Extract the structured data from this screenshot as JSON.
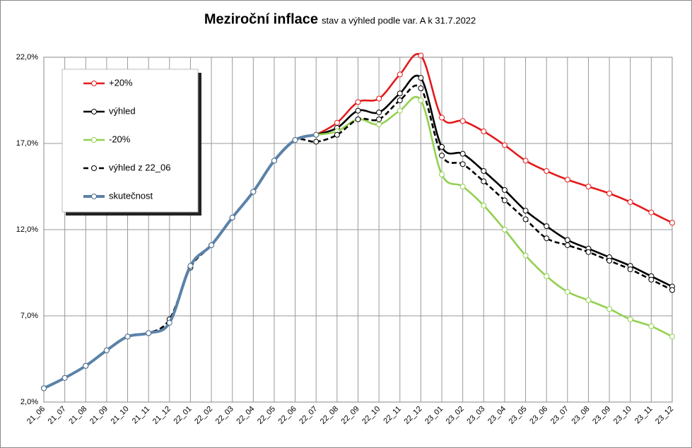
{
  "chart_data": {
    "type": "line",
    "title": "Meziroční inflace",
    "subtitle": "stav a výhled podle var. A k 31.7.2022",
    "categories": [
      "21_06",
      "21_07",
      "21_08",
      "21_09",
      "21_10",
      "21_11",
      "21_12",
      "22_01",
      "22_02",
      "22_03",
      "22_04",
      "22_05",
      "22_06",
      "22_07",
      "22_08",
      "22_09",
      "22_10",
      "22_11",
      "22_12",
      "23_01",
      "23_02",
      "23_03",
      "23_04",
      "23_05",
      "23_06",
      "23_07",
      "23_08",
      "23_09",
      "23_10",
      "23_11",
      "23_12"
    ],
    "ylim": [
      2,
      22
    ],
    "yticks": [
      {
        "value": 2,
        "label": "2,0%"
      },
      {
        "value": 7,
        "label": "7,0%"
      },
      {
        "value": 12,
        "label": "12,0%"
      },
      {
        "value": 17,
        "label": "17,0%"
      },
      {
        "value": 22,
        "label": "22,0%"
      }
    ],
    "grid": true,
    "legend": "upper left",
    "series": [
      {
        "name": "+20%",
        "color": "#e31a1c",
        "dash": false,
        "values": [
          null,
          null,
          null,
          null,
          null,
          null,
          null,
          null,
          null,
          null,
          null,
          null,
          null,
          17.5,
          18.2,
          19.4,
          19.6,
          21.0,
          22.1,
          18.5,
          18.3,
          17.7,
          16.9,
          16.0,
          15.4,
          14.9,
          14.5,
          14.1,
          13.6,
          13.0,
          12.4
        ]
      },
      {
        "name": "výhled",
        "color": "#000000",
        "dash": false,
        "values": [
          null,
          null,
          null,
          null,
          null,
          null,
          null,
          null,
          null,
          null,
          null,
          null,
          null,
          17.5,
          17.9,
          18.9,
          18.8,
          19.9,
          20.8,
          16.8,
          16.4,
          15.4,
          14.3,
          13.1,
          12.2,
          11.4,
          10.9,
          10.4,
          9.9,
          9.3,
          8.7
        ]
      },
      {
        "name": "-20%",
        "color": "#92d050",
        "dash": false,
        "values": [
          null,
          null,
          null,
          null,
          null,
          null,
          null,
          null,
          null,
          null,
          null,
          null,
          null,
          17.5,
          17.7,
          18.4,
          18.1,
          18.9,
          19.5,
          15.2,
          14.5,
          13.4,
          12.0,
          10.5,
          9.3,
          8.4,
          7.9,
          7.4,
          6.8,
          6.4,
          5.8
        ]
      },
      {
        "name": "výhled z 22_06",
        "color": "#000000",
        "dash": true,
        "values": [
          2.8,
          3.4,
          4.1,
          5.0,
          5.8,
          6.0,
          6.8,
          9.8,
          11.1,
          12.7,
          14.2,
          16.0,
          17.2,
          17.1,
          17.5,
          18.4,
          18.4,
          19.5,
          20.2,
          16.3,
          15.8,
          14.8,
          13.7,
          12.6,
          11.5,
          11.1,
          10.7,
          10.2,
          9.7,
          9.1,
          8.5
        ]
      },
      {
        "name": "skutečnost",
        "color": "#5b82a8",
        "dash": false,
        "values": [
          2.8,
          3.4,
          4.1,
          5.0,
          5.8,
          6.0,
          6.6,
          9.9,
          11.1,
          12.7,
          14.2,
          16.0,
          17.2,
          17.5,
          null,
          null,
          null,
          null,
          null,
          null,
          null,
          null,
          null,
          null,
          null,
          null,
          null,
          null,
          null,
          null,
          null
        ]
      }
    ]
  }
}
